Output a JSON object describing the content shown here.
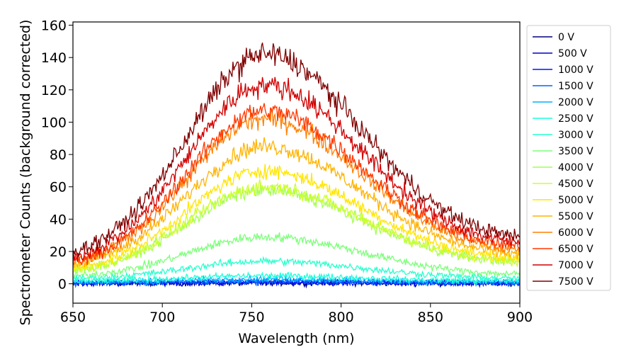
{
  "chart_data": {
    "type": "line",
    "title": "",
    "xlabel": "Wavelength (nm)",
    "ylabel": "Spectrometer Counts (background corrected)",
    "xlim": [
      650,
      900
    ],
    "ylim": [
      -12,
      162
    ],
    "xticks": [
      650,
      700,
      750,
      800,
      850,
      900
    ],
    "yticks": [
      0,
      20,
      40,
      60,
      80,
      100,
      120,
      140,
      160
    ],
    "grid": false,
    "legend_position": "right-outside",
    "peak_wavelength": 757,
    "series": [
      {
        "name": "0 V",
        "color": "#00007f",
        "peak": 0.5,
        "baseline650": 0.3,
        "baseline900": 0.3,
        "noise": 1.2
      },
      {
        "name": "500 V",
        "color": "#0000c8",
        "peak": 0.8,
        "baseline650": 0.4,
        "baseline900": 0.4,
        "noise": 1.2
      },
      {
        "name": "1000 V",
        "color": "#0014ff",
        "peak": 1.0,
        "baseline650": 0.4,
        "baseline900": 0.4,
        "noise": 1.2
      },
      {
        "name": "1500 V",
        "color": "#0064ff",
        "peak": 1.5,
        "baseline650": 0.6,
        "baseline900": 0.6,
        "noise": 1.3
      },
      {
        "name": "2000 V",
        "color": "#00b0ff",
        "peak": 3,
        "baseline650": 1,
        "baseline900": 1,
        "noise": 1.3
      },
      {
        "name": "2500 V",
        "color": "#1cffdb",
        "peak": 5,
        "baseline650": 1.5,
        "baseline900": 1.5,
        "noise": 1.3
      },
      {
        "name": "3000 V",
        "color": "#29ffce",
        "peak": 14,
        "baseline650": 3,
        "baseline900": 3,
        "noise": 1.4
      },
      {
        "name": "3500 V",
        "color": "#7dff7a",
        "peak": 29,
        "baseline650": 4,
        "baseline900": 5,
        "noise": 1.5
      },
      {
        "name": "4000 V",
        "color": "#a4ff53",
        "peak": 58,
        "baseline650": 6,
        "baseline900": 12,
        "noise": 2.0
      },
      {
        "name": "4500 V",
        "color": "#ceff29",
        "peak": 60,
        "baseline650": 6,
        "baseline900": 12,
        "noise": 2.0
      },
      {
        "name": "5000 V",
        "color": "#ffe600",
        "peak": 70,
        "baseline650": 7,
        "baseline900": 14,
        "noise": 2.0
      },
      {
        "name": "5500 V",
        "color": "#ffb300",
        "peak": 85,
        "baseline650": 9,
        "baseline900": 16,
        "noise": 2.2
      },
      {
        "name": "6000 V",
        "color": "#ff8000",
        "peak": 102,
        "baseline650": 10,
        "baseline900": 18,
        "noise": 2.4
      },
      {
        "name": "6500 V",
        "color": "#ff3800",
        "peak": 107,
        "baseline650": 10,
        "baseline900": 20,
        "noise": 2.5
      },
      {
        "name": "7000 V",
        "color": "#d10000",
        "peak": 123,
        "baseline650": 12,
        "baseline900": 22,
        "noise": 2.7
      },
      {
        "name": "7500 V",
        "color": "#800000",
        "peak": 142,
        "baseline650": 15,
        "baseline900": 25,
        "noise": 3.0
      }
    ]
  }
}
